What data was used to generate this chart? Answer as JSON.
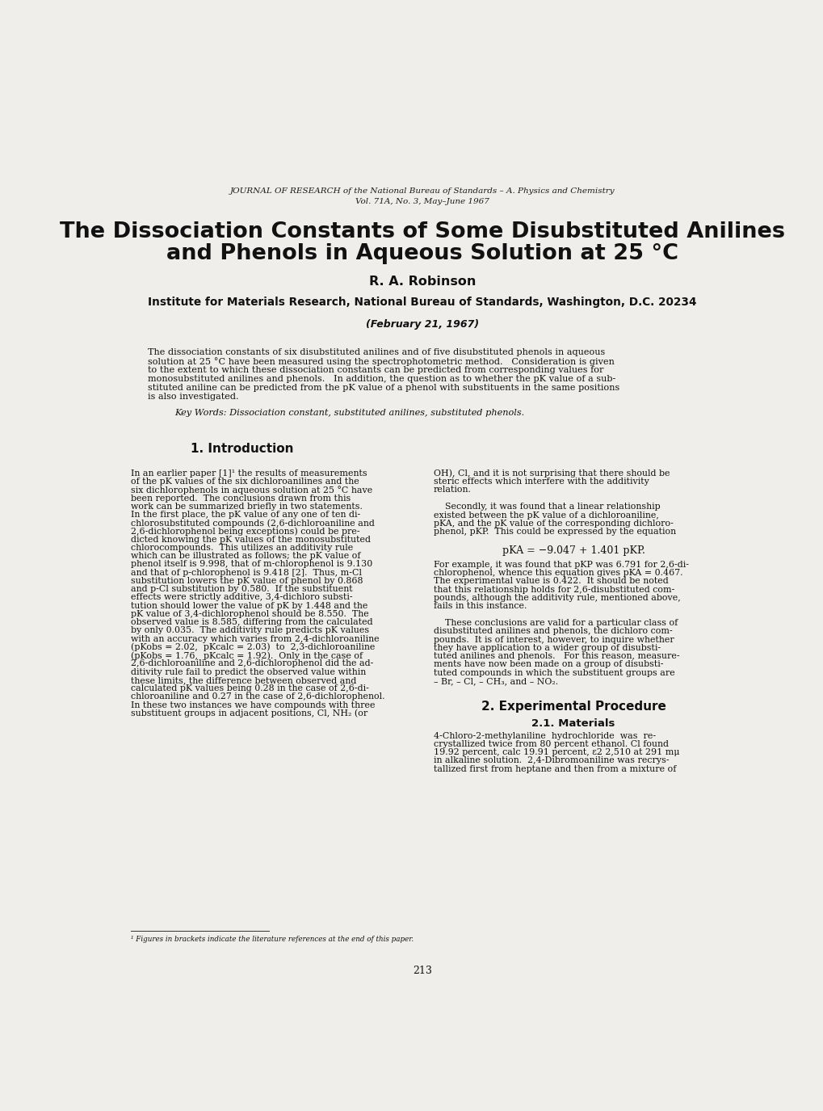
{
  "background_color": "#f0eeeb",
  "page_width": 10.2,
  "page_height": 13.75,
  "journal_line1": "JOURNAL OF RESEARCH of the National Bureau of Standards – A. Physics and Chemistry",
  "journal_line2": "Vol. 71A, No. 3, May–June 1967",
  "title_line1": "The Dissociation Constants of Some Disubstituted Anilines",
  "title_line2": "and Phenols in Aqueous Solution at 25 °C",
  "author": "R. A. Robinson",
  "affiliation": "Institute for Materials Research, National Bureau of Standards, Washington, D.C. 20234",
  "date": "(February 21, 1967)",
  "abstract_lines": [
    "The dissociation constants of six disubstituted anilines and of five disubstituted phenols in aqueous",
    "solution at 25 °C have been measured using the spectrophotometric method.   Consideration is given",
    "to the extent to which these dissociation constants can be predicted from corresponding values for",
    "monosubstituted anilines and phenols.   In addition, the question as to whether the pK value of a sub-",
    "stituted aniline can be predicted from the pK value of a phenol with substituents in the same positions",
    "is also investigated."
  ],
  "keywords": "Key Words: Dissociation constant, substituted anilines, substituted phenols.",
  "section1_title": "1. Introduction",
  "col1_lines": [
    "In an earlier paper [1]¹ the results of measurements",
    "of the pK values of the six dichloroanilines and the",
    "six dichlorophenols in aqueous solution at 25 °C have",
    "been reported.  The conclusions drawn from this",
    "work can be summarized briefly in two statements.",
    "In the first place, the pK value of any one of ten di-",
    "chlorosubstituted compounds (2,6-dichloroaniline and",
    "2,6-dichlorophenol being exceptions) could be pre-",
    "dicted knowing the pK values of the monosubstituted",
    "chlorocompounds.  This utilizes an additivity rule",
    "which can be illustrated as follows; the pK value of",
    "phenol itself is 9.998, that of m-chlorophenol is 9.130",
    "and that of p-chlorophenol is 9.418 [2].  Thus, m-Cl",
    "substitution lowers the pK value of phenol by 0.868",
    "and p-Cl substitution by 0.580.  If the substituent",
    "effects were strictly additive, 3,4-dichloro substi-",
    "tution should lower the value of pK by 1.448 and the",
    "pK value of 3,4-dichlorophenol should be 8.550.  The",
    "observed value is 8.585, differing from the calculated",
    "by only 0.035.  The additivity rule predicts pK values",
    "with an accuracy which varies from 2,4-dichloroaniline",
    "(pKobs = 2.02,  pKcalc = 2.03)  to  2,3-dichloroaniline",
    "(pKobs = 1.76,  pKcalc = 1.92).  Only in the case of",
    "2,6-dichloroaniline and 2,6-dichlorophenol did the ad-",
    "ditivity rule fail to predict the observed value within",
    "these limits, the difference between observed and",
    "calculated pK values being 0.28 in the case of 2,6-di-",
    "chloroaniline and 0.27 in the case of 2,6-dichlorophenol.",
    "In these two instances we have compounds with three",
    "substituent groups in adjacent positions, Cl, NH₂ (or"
  ],
  "col2_lines_p1": [
    "OH), Cl, and it is not surprising that there should be",
    "steric effects which interfere with the additivity",
    "relation."
  ],
  "col2_lines_p2": [
    "    Secondly, it was found that a linear relationship",
    "existed between the pK value of a dichloroaniline,",
    "pKA, and the pK value of the corresponding dichloro-",
    "phenol, pKP.  This could be expressed by the equation"
  ],
  "col2_equation": "pKA = −9.047 + 1.401 pKP.",
  "col2_lines_p3": [
    "For example, it was found that pKP was 6.791 for 2,6-di-",
    "chlorophenol, whence this equation gives pKA = 0.467.",
    "The experimental value is 0.422.  It should be noted",
    "that this relationship holds for 2,6-disubstituted com-",
    "pounds, although the additivity rule, mentioned above,",
    "fails in this instance."
  ],
  "col2_lines_p4": [
    "    These conclusions are valid for a particular class of",
    "disubstituted anilines and phenols, the dichloro com-",
    "pounds.  It is of interest, however, to inquire whether",
    "they have application to a wider group of disubsti-",
    "tuted anilines and phenols.   For this reason, measure-",
    "ments have now been made on a group of disubsti-",
    "tuted compounds in which the substituent groups are",
    "– Br, – Cl, – CH₃, and – NO₂."
  ],
  "section2_title": "2. Experimental Procedure",
  "section21_title": "2.1. Materials",
  "section21_lines": [
    "4-Chloro-2-methylaniline  hydrochloride  was  re-",
    "crystallized twice from 80 percent ethanol. Cl found",
    "19.92 percent, calc 19.91 percent, ε2 2,510 at 291 mμ",
    "in alkaline solution.  2,4-Dibromoaniline was recrys-",
    "tallized first from heptane and then from a mixture of"
  ],
  "footnote": "¹ Figures in brackets indicate the literature references at the end of this paper.",
  "page_number": "213"
}
